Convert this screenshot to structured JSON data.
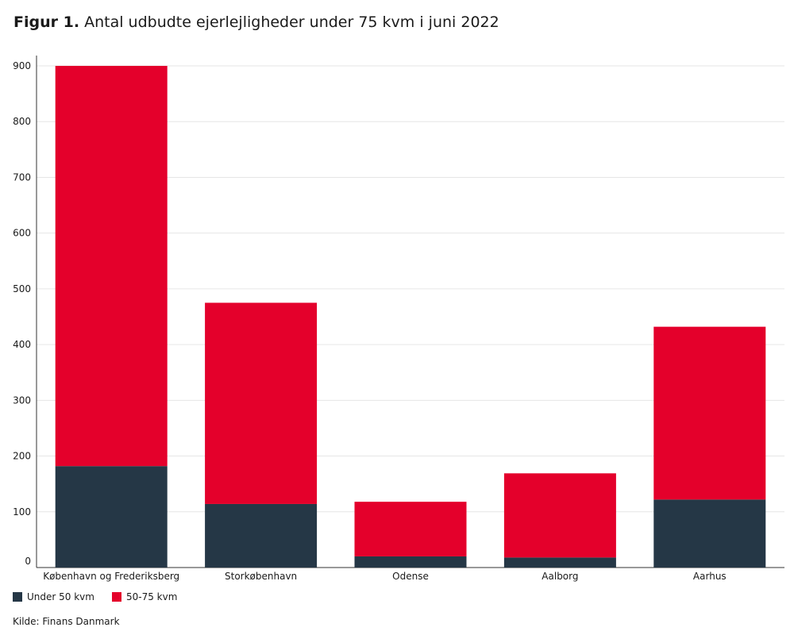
{
  "title": {
    "prefix": "Figur 1.",
    "text": "Antal udbudte ejerlejligheder under 75 kvm i juni 2022"
  },
  "source": "Kilde: Finans Danmark",
  "colors": {
    "under50": "#253746",
    "r50_75": "#e4002b",
    "grid": "#e6e6e6",
    "axis": "#333333"
  },
  "chart_data": {
    "type": "bar",
    "stacked": true,
    "categories": [
      "København og Frederiksberg",
      "Storkøbenhavn",
      "Odense",
      "Aalborg",
      "Aarhus"
    ],
    "series": [
      {
        "name": "Under 50 kvm",
        "values": [
          182,
          114,
          20,
          18,
          122
        ]
      },
      {
        "name": "50-75 kvm",
        "values": [
          718,
          361,
          98,
          151,
          310
        ]
      }
    ],
    "ylim": [
      0,
      900
    ],
    "yticks": [
      0,
      100,
      200,
      300,
      400,
      500,
      600,
      700,
      800,
      900
    ],
    "grid": true,
    "legend": "bottom-left"
  }
}
